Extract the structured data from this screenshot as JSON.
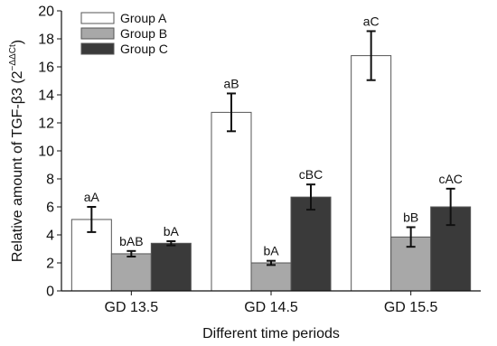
{
  "chart_data": {
    "type": "bar",
    "title": "",
    "xlabel": "Different time periods",
    "ylabel": "Relative amount of TGF-β3 (2",
    "ylabel_superscript": "−ΔΔCt",
    "ylabel_suffix": ")",
    "ylim": [
      0,
      20
    ],
    "yticks": [
      0,
      2,
      4,
      6,
      8,
      10,
      12,
      14,
      16,
      18,
      20
    ],
    "grid": false,
    "legend_position": "top-left",
    "categories": [
      "GD 13.5",
      "GD 14.5",
      "GD 15.5"
    ],
    "series": [
      {
        "name": "Group A",
        "color": "#ffffff",
        "values": [
          5.1,
          12.75,
          16.8
        ],
        "errors": [
          0.9,
          1.35,
          1.75
        ],
        "labels": [
          "aA",
          "aB",
          "aC"
        ]
      },
      {
        "name": "Group B",
        "color": "#a8a8a8",
        "values": [
          2.65,
          2.0,
          3.85
        ],
        "errors": [
          0.2,
          0.15,
          0.7
        ],
        "labels": [
          "bAB",
          "bA",
          "bB"
        ]
      },
      {
        "name": "Group C",
        "color": "#3a3a3a",
        "values": [
          3.4,
          6.7,
          6.0
        ],
        "errors": [
          0.15,
          0.9,
          1.3
        ],
        "labels": [
          "bA",
          "cBC",
          "cAC"
        ]
      }
    ]
  }
}
